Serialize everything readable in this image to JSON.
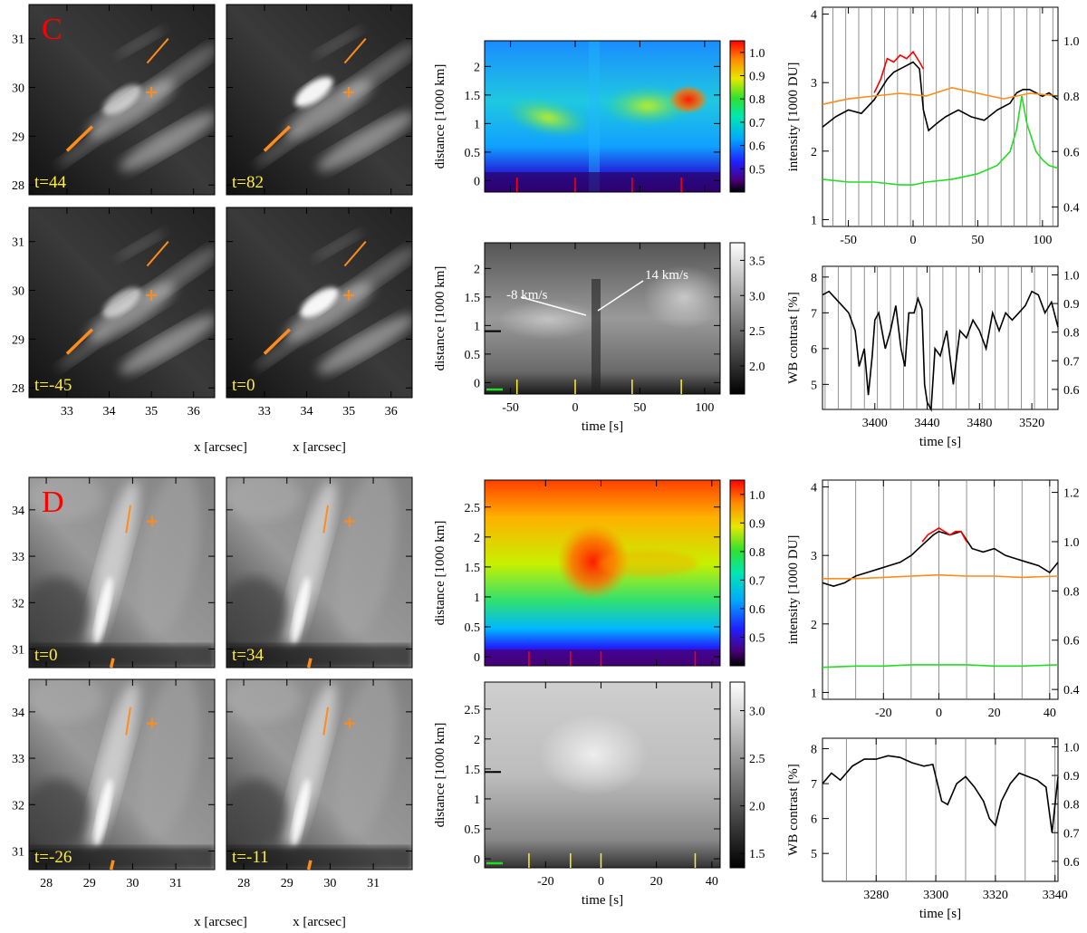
{
  "colors": {
    "orange": "#ff8c1a",
    "yellow": "#ffee33",
    "red": "#ff0000",
    "green": "#22dd22",
    "black": "#000000"
  },
  "chart_data": [
    {
      "panel": "C",
      "type": "image-grid",
      "label": "C",
      "image_times": [
        "t=44",
        "t=82",
        "t=-45",
        "t=0"
      ],
      "x_ticks": [
        33,
        34,
        35,
        36
      ],
      "y_ticks": [
        28,
        29,
        30,
        31
      ],
      "xlim": [
        32.1,
        36.5
      ],
      "ylim": [
        27.8,
        31.7
      ],
      "xlabel": "x [arcsec]",
      "cross": [
        35.0,
        29.9
      ],
      "slit": [
        [
          33.0,
          28.7
        ],
        [
          33.6,
          29.2
        ]
      ],
      "slit2": [
        [
          34.9,
          30.5
        ],
        [
          35.4,
          31.0
        ]
      ]
    },
    {
      "panel": "C",
      "type": "heatmap",
      "colormap": "rainbow",
      "ylabel": "distance [1000 km]",
      "ylim": [
        -0.2,
        2.45
      ],
      "y_ticks": [
        0.0,
        0.5,
        1.0,
        1.5,
        2.0
      ],
      "colorbar_range": [
        0.4,
        1.05
      ],
      "colorbar_ticks": [
        0.5,
        0.6,
        0.7,
        0.8,
        0.9,
        1.0
      ],
      "marker_times": [
        -45,
        0,
        44,
        82
      ]
    },
    {
      "panel": "C",
      "type": "heatmap",
      "colormap": "gray",
      "xlabel": "time [s]",
      "ylabel": "distance [1000 km]",
      "xlim": [
        -70,
        112
      ],
      "x_ticks": [
        -50,
        0,
        50,
        100
      ],
      "ylim": [
        -0.2,
        2.45
      ],
      "y_ticks": [
        0.0,
        0.5,
        1.0,
        1.5,
        2.0
      ],
      "colorbar_range": [
        1.6,
        3.75
      ],
      "colorbar_ticks": [
        2.0,
        2.5,
        3.0,
        3.5
      ],
      "colorbar_tick_labels": [
        "2.0",
        "2.5",
        "3.0",
        "3.5"
      ],
      "marker_times": [
        -45,
        0,
        44,
        82
      ],
      "annotations": [
        "-8 km/s",
        "14 km/s"
      ],
      "black_mark_y": 0.9
    },
    {
      "panel": "C",
      "type": "line",
      "ylabel": "intensity [1000 DU]",
      "xlim": [
        -70,
        112
      ],
      "x_ticks": [
        -50,
        0,
        50,
        100
      ],
      "ylim": [
        0.9,
        4.1
      ],
      "y_ticks": [
        1,
        2,
        3,
        4
      ],
      "y2lim": [
        0.33,
        1.12
      ],
      "y2_ticks": [
        0.4,
        0.6,
        0.8,
        1.0
      ],
      "y2_tick_labels": [
        "0.4",
        "0.6",
        "0.8",
        "1.0"
      ],
      "vlines": [
        -62,
        -52,
        -42,
        -32,
        -22,
        -12,
        -2,
        8,
        18,
        28,
        38,
        48,
        58,
        68,
        78,
        88,
        98,
        108
      ],
      "series": [
        {
          "name": "black",
          "color": "#000000",
          "axis": "left",
          "x": [
            -70,
            -60,
            -50,
            -40,
            -35,
            -30,
            -25,
            -20,
            -15,
            -10,
            -5,
            0,
            5,
            8,
            12,
            18,
            25,
            35,
            45,
            55,
            65,
            75,
            80,
            85,
            90,
            95,
            100,
            105,
            112
          ],
          "y": [
            2.35,
            2.5,
            2.6,
            2.55,
            2.65,
            2.75,
            2.9,
            3.05,
            3.15,
            3.2,
            3.25,
            3.3,
            3.2,
            2.6,
            2.3,
            2.4,
            2.5,
            2.6,
            2.5,
            2.45,
            2.6,
            2.7,
            2.85,
            2.9,
            2.9,
            2.85,
            2.8,
            2.85,
            2.75
          ]
        },
        {
          "name": "red",
          "color": "#ff0000",
          "axis": "left",
          "x": [
            -30,
            -25,
            -20,
            -15,
            -10,
            -5,
            0,
            5,
            8
          ],
          "y": [
            2.85,
            3.05,
            3.35,
            3.3,
            3.4,
            3.35,
            3.45,
            3.3,
            3.2
          ]
        },
        {
          "name": "orange",
          "color": "#ff8c1a",
          "axis": "right",
          "x": [
            -70,
            -50,
            -30,
            -10,
            10,
            30,
            50,
            70,
            90,
            112
          ],
          "y": [
            0.77,
            0.79,
            0.8,
            0.81,
            0.8,
            0.83,
            0.81,
            0.79,
            0.81,
            0.8
          ]
        },
        {
          "name": "green",
          "color": "#22dd22",
          "axis": "right",
          "x": [
            -70,
            -50,
            -30,
            -10,
            0,
            10,
            30,
            50,
            65,
            75,
            80,
            84,
            88,
            95,
            100,
            105,
            112
          ],
          "y": [
            0.5,
            0.49,
            0.49,
            0.48,
            0.48,
            0.49,
            0.5,
            0.52,
            0.55,
            0.6,
            0.68,
            0.8,
            0.7,
            0.6,
            0.57,
            0.55,
            0.54
          ]
        }
      ]
    },
    {
      "panel": "C",
      "type": "line",
      "xlabel": "time [s]",
      "ylabel": "WB contrast [%]",
      "xlim": [
        3360,
        3540
      ],
      "x_ticks": [
        3400,
        3440,
        3480,
        3520
      ],
      "ylim": [
        4.3,
        8.3
      ],
      "y_ticks": [
        5,
        6,
        7,
        8
      ],
      "y2lim": [
        0.53,
        1.03
      ],
      "y2_ticks": [
        0.6,
        0.7,
        0.8,
        0.9,
        1.0
      ],
      "y2_tick_labels": [
        "0.6",
        "0.7",
        "0.8",
        "0.9",
        "1.0"
      ],
      "vlines": [
        3362,
        3372,
        3382,
        3392,
        3402,
        3412,
        3422,
        3432,
        3442,
        3452,
        3462,
        3472,
        3482,
        3492,
        3502,
        3512,
        3522,
        3532
      ],
      "series": [
        {
          "name": "black",
          "color": "#000000",
          "x": [
            3360,
            3365,
            3370,
            3375,
            3380,
            3385,
            3388,
            3392,
            3395,
            3398,
            3400,
            3403,
            3408,
            3412,
            3416,
            3420,
            3423,
            3426,
            3430,
            3433,
            3436,
            3438,
            3440,
            3443,
            3446,
            3450,
            3455,
            3460,
            3465,
            3470,
            3475,
            3480,
            3485,
            3490,
            3495,
            3500,
            3505,
            3510,
            3515,
            3520,
            3525,
            3530,
            3535,
            3540
          ],
          "y": [
            7.5,
            7.6,
            7.4,
            7.2,
            7.0,
            6.5,
            5.5,
            6.0,
            4.7,
            5.8,
            6.8,
            7.0,
            6.0,
            6.5,
            7.2,
            6.0,
            5.5,
            7.0,
            7.0,
            7.4,
            7.1,
            5.0,
            4.5,
            4.3,
            6.0,
            5.8,
            6.5,
            5.0,
            6.5,
            6.3,
            6.8,
            6.5,
            6.0,
            7.0,
            6.5,
            7.0,
            6.8,
            7.0,
            7.2,
            7.6,
            7.5,
            7.0,
            7.3,
            6.6
          ]
        }
      ]
    },
    {
      "panel": "D",
      "type": "image-grid",
      "label": "D",
      "image_times": [
        "t=0",
        "t=34",
        "t=-26",
        "t=-11"
      ],
      "x_ticks": [
        28,
        29,
        30,
        31
      ],
      "y_ticks": [
        31,
        32,
        33,
        34
      ],
      "xlim": [
        27.6,
        31.9
      ],
      "ylim": [
        30.6,
        34.7
      ],
      "xlabel": "x [arcsec]",
      "cross": [
        30.45,
        33.75
      ],
      "slit": [
        [
          29.5,
          30.6
        ],
        [
          29.55,
          30.8
        ]
      ],
      "slit2": [
        [
          29.85,
          33.5
        ],
        [
          29.95,
          34.1
        ]
      ]
    },
    {
      "panel": "D",
      "type": "heatmap",
      "colormap": "rainbow",
      "ylabel": "distance [1000 km]",
      "ylim": [
        -0.15,
        2.95
      ],
      "y_ticks": [
        0.0,
        0.5,
        1.0,
        1.5,
        2.0,
        2.5
      ],
      "colorbar_range": [
        0.4,
        1.05
      ],
      "colorbar_ticks": [
        0.5,
        0.6,
        0.7,
        0.8,
        0.9,
        1.0
      ],
      "marker_times": [
        -26,
        -11,
        0,
        34
      ]
    },
    {
      "panel": "D",
      "type": "heatmap",
      "colormap": "gray",
      "xlabel": "time [s]",
      "ylabel": "distance [1000 km]",
      "xlim": [
        -42,
        43
      ],
      "x_ticks": [
        -20,
        0,
        20,
        40
      ],
      "ylim": [
        -0.15,
        2.95
      ],
      "y_ticks": [
        0.0,
        0.5,
        1.0,
        1.5,
        2.0,
        2.5
      ],
      "colorbar_range": [
        1.35,
        3.3
      ],
      "colorbar_ticks": [
        1.5,
        2.0,
        2.5,
        3.0
      ],
      "colorbar_tick_labels": [
        "1.5",
        "2.0",
        "2.5",
        "3.0"
      ],
      "marker_times": [
        -26,
        -11,
        0,
        34
      ],
      "black_mark_y": 1.45
    },
    {
      "panel": "D",
      "type": "line",
      "ylabel": "intensity [1000 DU]",
      "xlim": [
        -42,
        43
      ],
      "x_ticks": [
        -20,
        0,
        20,
        40
      ],
      "ylim": [
        0.9,
        4.1
      ],
      "y_ticks": [
        1,
        2,
        3,
        4
      ],
      "y2lim": [
        0.36,
        1.25
      ],
      "y2_ticks": [
        0.4,
        0.6,
        0.8,
        1.0,
        1.2
      ],
      "y2_tick_labels": [
        "0.4",
        "0.6",
        "0.8",
        "1.0",
        "1.2"
      ],
      "vlines": [
        -40,
        -30,
        -20,
        -10,
        0,
        10,
        20,
        30,
        40
      ],
      "series": [
        {
          "name": "black",
          "color": "#000000",
          "axis": "left",
          "x": [
            -42,
            -38,
            -34,
            -30,
            -26,
            -22,
            -18,
            -14,
            -10,
            -6,
            -2,
            0,
            4,
            8,
            12,
            16,
            20,
            24,
            28,
            32,
            36,
            40,
            43
          ],
          "y": [
            2.6,
            2.55,
            2.6,
            2.7,
            2.75,
            2.8,
            2.85,
            2.9,
            3.0,
            3.15,
            3.3,
            3.35,
            3.3,
            3.35,
            3.1,
            3.05,
            3.1,
            3.0,
            2.95,
            2.9,
            2.85,
            2.75,
            2.9
          ]
        },
        {
          "name": "red",
          "color": "#ff0000",
          "axis": "left",
          "x": [
            -6,
            -4,
            -2,
            0,
            2,
            4,
            6,
            8,
            10
          ],
          "y": [
            3.2,
            3.3,
            3.35,
            3.4,
            3.35,
            3.3,
            3.35,
            3.35,
            3.2
          ]
        },
        {
          "name": "orange",
          "color": "#ff8c1a",
          "axis": "right",
          "x": [
            -42,
            -30,
            -20,
            -10,
            0,
            10,
            20,
            30,
            43
          ],
          "y": [
            0.85,
            0.85,
            0.855,
            0.86,
            0.865,
            0.86,
            0.86,
            0.855,
            0.86
          ]
        },
        {
          "name": "green",
          "color": "#22dd22",
          "axis": "right",
          "x": [
            -42,
            -30,
            -20,
            -10,
            0,
            10,
            20,
            30,
            43
          ],
          "y": [
            0.49,
            0.495,
            0.495,
            0.5,
            0.5,
            0.5,
            0.495,
            0.495,
            0.5
          ]
        }
      ]
    },
    {
      "panel": "D",
      "type": "line",
      "xlabel": "time [s]",
      "ylabel": "WB contrast [%]",
      "xlim": [
        3262,
        3341
      ],
      "x_ticks": [
        3280,
        3300,
        3320,
        3340
      ],
      "ylim": [
        4.2,
        8.3
      ],
      "y_ticks": [
        5,
        6,
        7,
        8
      ],
      "y2lim": [
        0.53,
        1.03
      ],
      "y2_ticks": [
        0.6,
        0.7,
        0.8,
        0.9,
        1.0
      ],
      "y2_tick_labels": [
        "0.6",
        "0.7",
        "0.8",
        "0.9",
        "1.0"
      ],
      "vlines": [
        3270,
        3280,
        3290,
        3300,
        3310,
        3320,
        3330,
        3340
      ],
      "series": [
        {
          "name": "black",
          "color": "#000000",
          "x": [
            3262,
            3265,
            3268,
            3272,
            3276,
            3280,
            3284,
            3288,
            3292,
            3296,
            3299,
            3302,
            3304,
            3307,
            3310,
            3313,
            3316,
            3318,
            3320,
            3322,
            3325,
            3328,
            3331,
            3334,
            3337,
            3339,
            3341
          ],
          "y": [
            7.0,
            7.3,
            7.1,
            7.5,
            7.7,
            7.7,
            7.8,
            7.75,
            7.6,
            7.5,
            7.55,
            6.5,
            6.4,
            7.0,
            7.2,
            6.9,
            6.5,
            6.0,
            5.8,
            6.5,
            7.0,
            7.3,
            7.2,
            7.1,
            6.9,
            5.6,
            7.2
          ]
        }
      ]
    }
  ]
}
